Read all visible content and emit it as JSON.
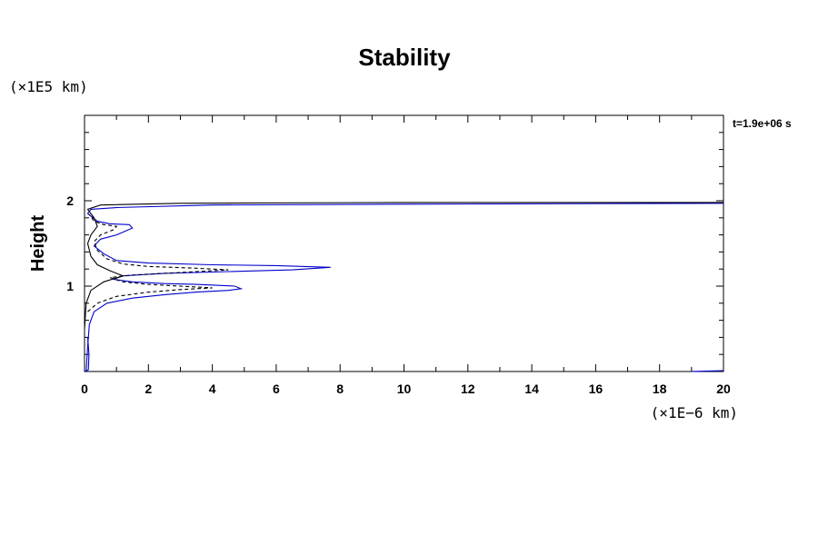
{
  "chart_data": {
    "type": "line",
    "title": "Stability",
    "ylabel": "Height",
    "xlabel": "",
    "x_unit": "(×1E−6 km)",
    "y_unit": "(×1E5 km)",
    "time_label": "t=1.9e+06 s",
    "xlim": [
      0,
      20
    ],
    "ylim": [
      0,
      3
    ],
    "x_ticks": [
      0,
      2,
      4,
      6,
      8,
      10,
      12,
      14,
      16,
      18,
      20
    ],
    "y_ticks": [
      1,
      2
    ],
    "grid": false,
    "colors": {
      "blue": "#0000cc",
      "black": "#000000"
    },
    "series": [
      {
        "style": "solid",
        "color": "blue",
        "points": [
          [
            0.05,
            0.0
          ],
          [
            0.1,
            0.3
          ],
          [
            0.15,
            0.55
          ],
          [
            0.3,
            0.7
          ],
          [
            0.7,
            0.8
          ],
          [
            1.5,
            0.86
          ],
          [
            2.5,
            0.9
          ],
          [
            3.5,
            0.93
          ],
          [
            4.5,
            0.95
          ],
          [
            4.9,
            0.97
          ],
          [
            4.7,
            1.0
          ],
          [
            3.5,
            1.02
          ],
          [
            2.5,
            1.03
          ],
          [
            1.5,
            1.05
          ],
          [
            0.9,
            1.08
          ],
          [
            1.2,
            1.12
          ],
          [
            2.5,
            1.15
          ],
          [
            4.5,
            1.17
          ],
          [
            6.5,
            1.19
          ],
          [
            7.7,
            1.22
          ],
          [
            6.0,
            1.24
          ],
          [
            4.0,
            1.25
          ],
          [
            2.0,
            1.27
          ],
          [
            1.0,
            1.3
          ],
          [
            0.6,
            1.38
          ],
          [
            0.3,
            1.47
          ],
          [
            0.5,
            1.55
          ],
          [
            1.0,
            1.6
          ],
          [
            1.5,
            1.68
          ],
          [
            1.4,
            1.72
          ],
          [
            0.8,
            1.73
          ],
          [
            0.4,
            1.76
          ],
          [
            0.1,
            1.85
          ],
          [
            0.2,
            1.9
          ],
          [
            1.0,
            1.92
          ],
          [
            4.0,
            1.95
          ],
          [
            10.0,
            1.96
          ],
          [
            20.0,
            1.97
          ]
        ]
      },
      {
        "style": "dashed",
        "color": "black",
        "points": [
          [
            0.1,
            0.7
          ],
          [
            0.4,
            0.8
          ],
          [
            1.0,
            0.88
          ],
          [
            2.0,
            0.93
          ],
          [
            3.0,
            0.96
          ],
          [
            4.0,
            0.98
          ],
          [
            3.0,
            1.0
          ],
          [
            2.0,
            1.02
          ],
          [
            1.2,
            1.05
          ],
          [
            0.8,
            1.1
          ],
          [
            1.5,
            1.13
          ],
          [
            3.0,
            1.16
          ],
          [
            4.5,
            1.19
          ],
          [
            3.5,
            1.21
          ],
          [
            2.0,
            1.23
          ],
          [
            1.2,
            1.26
          ],
          [
            0.7,
            1.32
          ],
          [
            0.4,
            1.42
          ],
          [
            0.3,
            1.52
          ],
          [
            0.5,
            1.6
          ],
          [
            0.9,
            1.66
          ],
          [
            1.0,
            1.7
          ],
          [
            0.6,
            1.72
          ],
          [
            0.3,
            1.76
          ],
          [
            0.15,
            1.84
          ]
        ]
      },
      {
        "style": "solid",
        "color": "black",
        "points": [
          [
            0.0,
            0.5
          ],
          [
            0.05,
            0.8
          ],
          [
            0.2,
            0.95
          ],
          [
            0.6,
            1.05
          ],
          [
            1.2,
            1.12
          ],
          [
            0.8,
            1.18
          ],
          [
            0.4,
            1.25
          ],
          [
            0.2,
            1.35
          ],
          [
            0.1,
            1.5
          ],
          [
            0.2,
            1.6
          ],
          [
            0.4,
            1.7
          ],
          [
            0.3,
            1.8
          ],
          [
            0.1,
            1.9
          ],
          [
            0.5,
            1.95
          ],
          [
            3.0,
            1.97
          ],
          [
            10.0,
            1.98
          ],
          [
            20.0,
            1.98
          ]
        ]
      },
      {
        "style": "solid",
        "color": "blue",
        "points": [
          [
            0.0,
            0.0
          ],
          [
            0.12,
            0.02
          ],
          [
            0.14,
            0.2
          ],
          [
            0.1,
            0.4
          ]
        ]
      },
      {
        "style": "solid",
        "color": "blue",
        "points": [
          [
            19.0,
            0.0
          ],
          [
            20.0,
            0.01
          ]
        ]
      }
    ]
  }
}
